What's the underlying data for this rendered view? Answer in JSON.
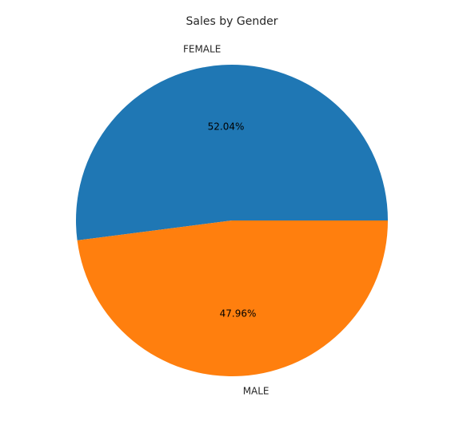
{
  "chart_data": {
    "type": "pie",
    "title": "Sales by Gender",
    "categories": [
      "FEMALE",
      "MALE"
    ],
    "values": [
      52.04,
      47.96
    ],
    "value_labels": [
      "52.04%",
      "47.96%"
    ],
    "colors": [
      "#1f77b4",
      "#ff7f0e"
    ],
    "start_angle_deg": 0,
    "direction": "counterclockwise",
    "legend": "none"
  }
}
